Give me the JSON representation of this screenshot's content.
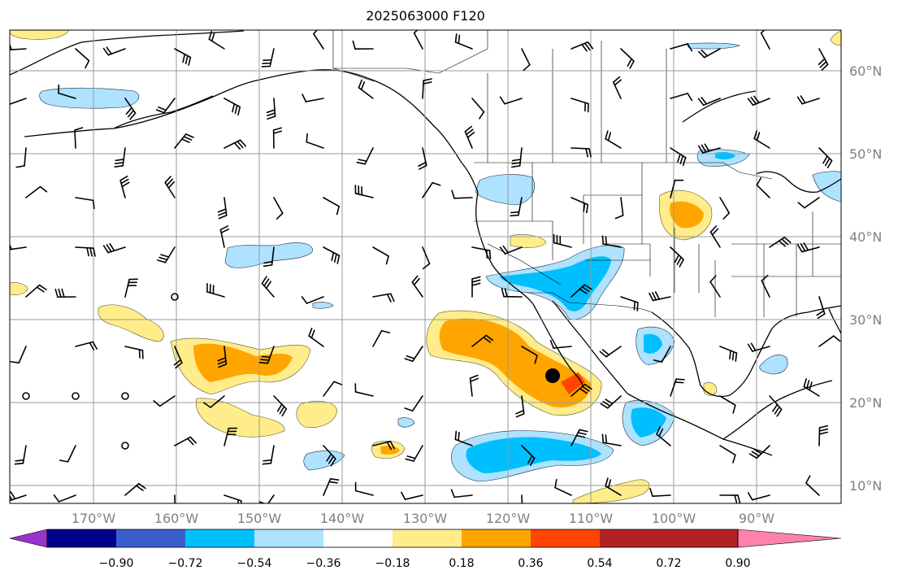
{
  "title": "2025063000 F120",
  "lat_labels": [
    "60°N",
    "50°N",
    "40°N",
    "30°N",
    "20°N",
    "10°N"
  ],
  "lon_labels": [
    "170°W",
    "160°W",
    "150°W",
    "140°W",
    "130°W",
    "120°W",
    "110°W",
    "100°W",
    "90°W"
  ],
  "colorbar": {
    "tick_labels": [
      "−0.90",
      "−0.72",
      "−0.54",
      "−0.36",
      "−0.18",
      "0.18",
      "0.36",
      "0.54",
      "0.72",
      "0.90"
    ],
    "colors": [
      "#9a32cd",
      "#00008b",
      "#3a5fcd",
      "#00bfff",
      "#aee2ff",
      "#ffffff",
      "#ffec8b",
      "#ffa500",
      "#ff4500",
      "#b22222",
      "#ff82ab"
    ]
  },
  "palette": {
    "grid": "#9a9a9a",
    "label_gray": "#808080",
    "coast": "#000000"
  },
  "map_icons": [
    "wind-barb-icon",
    "calm-circle-icon",
    "location-marker-icon"
  ]
}
